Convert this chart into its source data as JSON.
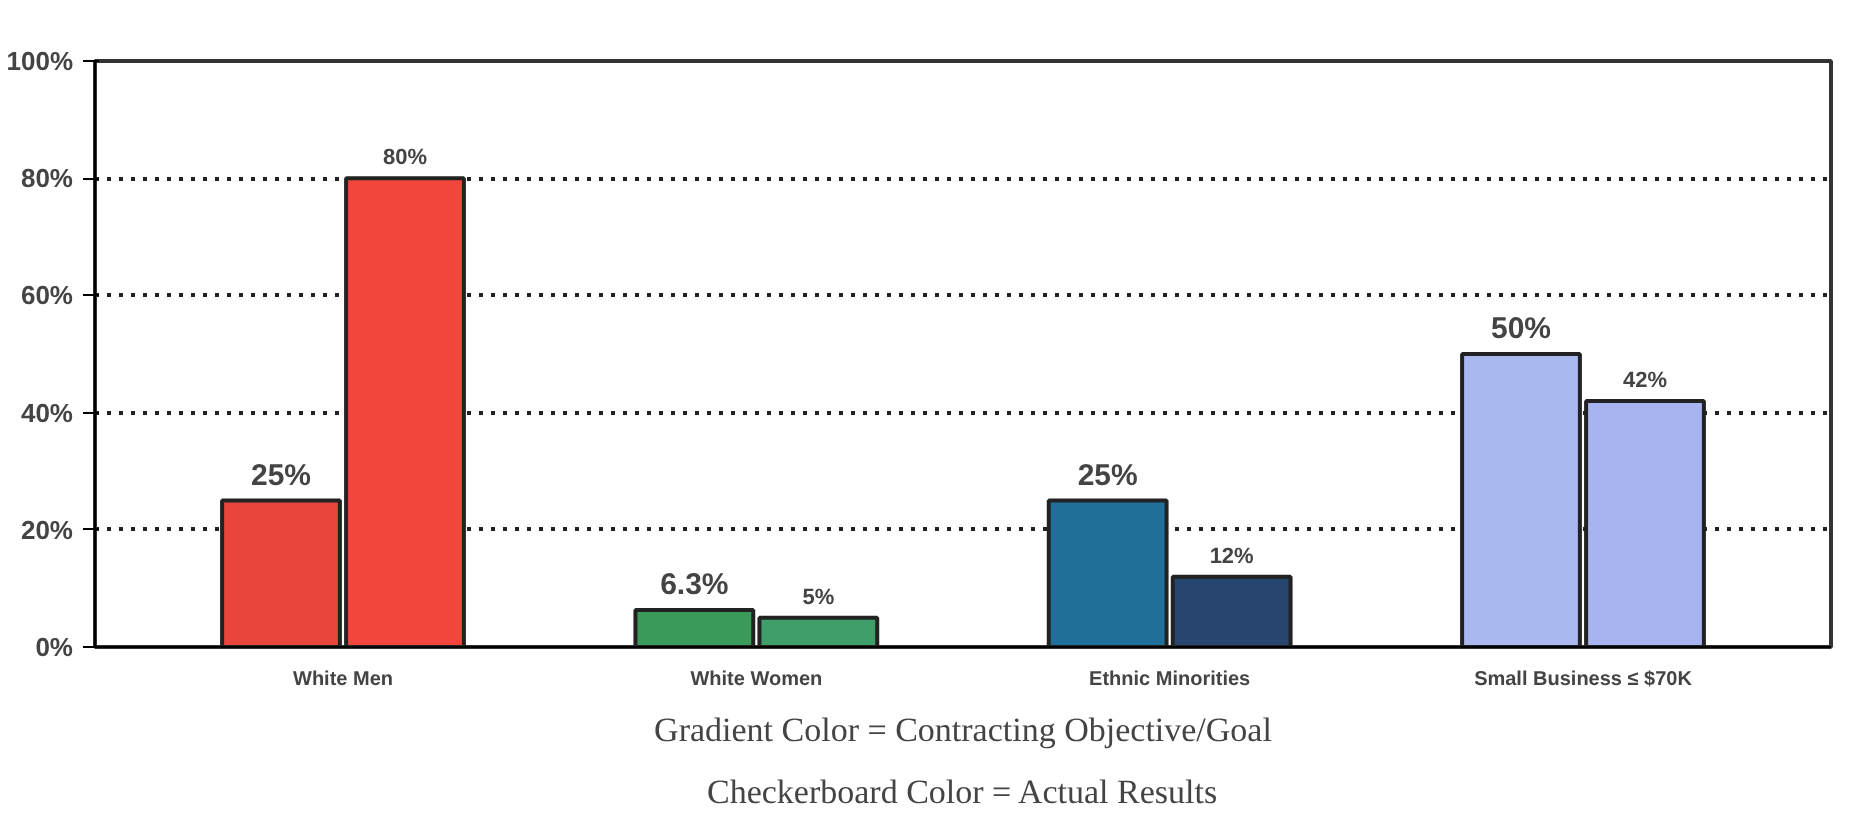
{
  "chart_data": {
    "type": "bar",
    "categories": [
      "White Men",
      "White Women",
      "Ethnic Minorities",
      "Small Business ≤ $70K"
    ],
    "series": [
      {
        "colors": [
          "#e8453c",
          "#3a9a5a",
          "#1f6f9a",
          "#a9b8ef"
        ],
        "values": [
          25,
          6.3,
          25,
          50
        ],
        "value_labels": [
          "25%",
          "6.3%",
          "25%",
          "50%"
        ]
      },
      {
        "colors": [
          "#f2463c",
          "#3f9e6a",
          "#27456e",
          "#a7b4ef"
        ],
        "values": [
          80,
          5,
          12,
          42
        ],
        "value_labels": [
          "80%",
          "5%",
          "12%",
          "42%"
        ]
      }
    ],
    "ylim": [
      0,
      100
    ],
    "yticks": [
      {
        "value": 0,
        "label": "0%"
      },
      {
        "value": 20,
        "label": "20%"
      },
      {
        "value": 40,
        "label": "40%"
      },
      {
        "value": 60,
        "label": "60%"
      },
      {
        "value": 80,
        "label": "80%"
      },
      {
        "value": 100,
        "label": "100%"
      }
    ],
    "grid": "y",
    "line_style": "dotted",
    "annotations": [
      "Gradient Color = Contracting Objective/Goal",
      "Checkerboard Color = Actual Results"
    ]
  }
}
